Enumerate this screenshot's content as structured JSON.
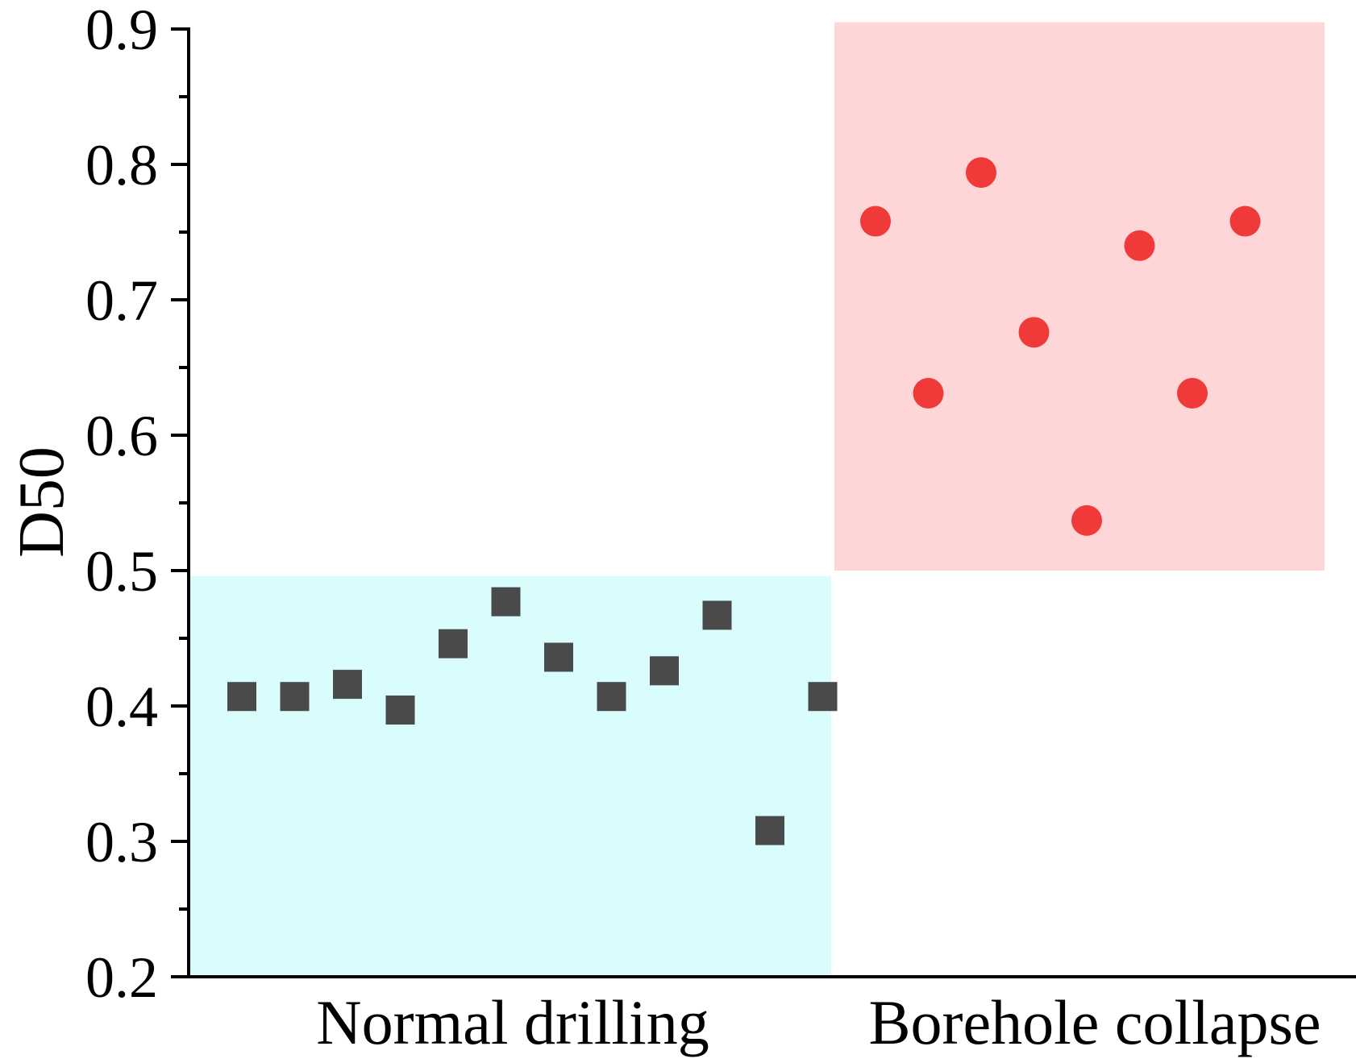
{
  "chart_data": {
    "type": "scatter",
    "title": "",
    "xlabel": "",
    "ylabel": "D50",
    "ylim": [
      0.2,
      0.9
    ],
    "yticks": [
      "0.2",
      "0.3",
      "0.4",
      "0.5",
      "0.6",
      "0.7",
      "0.8",
      "0.9"
    ],
    "categories": [
      "Normal drilling",
      "Borehole collapse"
    ],
    "regions": [
      {
        "name": "Normal drilling",
        "y_range": [
          0.2,
          0.496
        ],
        "color": "#d8fdfc"
      },
      {
        "name": "Borehole collapse",
        "y_range": [
          0.5,
          0.905
        ],
        "color": "#ffd6d8"
      }
    ],
    "series": [
      {
        "name": "Normal drilling",
        "marker": "square",
        "color": "#4a4a4a",
        "x": [
          1,
          2,
          3,
          4,
          5,
          6,
          7,
          8,
          9,
          10,
          11,
          12
        ],
        "values": [
          0.407,
          0.407,
          0.416,
          0.397,
          0.446,
          0.477,
          0.436,
          0.407,
          0.426,
          0.467,
          0.308,
          0.407
        ]
      },
      {
        "name": "Borehole collapse",
        "marker": "circle",
        "color": "#f03a3a",
        "x": [
          13,
          14,
          15,
          16,
          17,
          18,
          19,
          20
        ],
        "values": [
          0.758,
          0.631,
          0.794,
          0.676,
          0.537,
          0.74,
          0.631,
          0.758
        ]
      }
    ]
  }
}
